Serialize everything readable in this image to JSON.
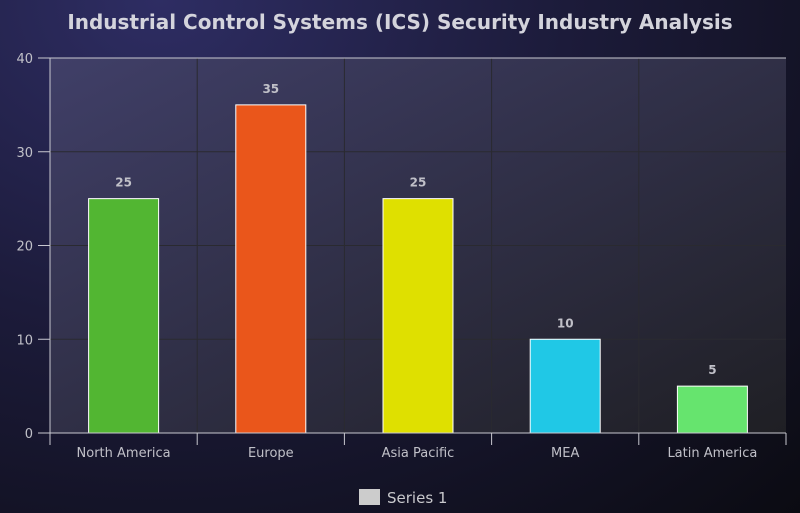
{
  "chart_data": {
    "type": "bar",
    "title": "Industrial Control Systems (ICS) Security Industry Analysis",
    "categories": [
      "North America",
      "Europe",
      "Asia Pacific",
      "MEA",
      "Latin America"
    ],
    "series": [
      {
        "name": "Series 1",
        "values": [
          25,
          35,
          25,
          10,
          5
        ]
      }
    ],
    "colors": [
      "#52b632",
      "#ea561b",
      "#dfe000",
      "#20c8e6",
      "#66e46e"
    ],
    "legend_color": "#cccccc",
    "ylim": [
      0,
      40
    ],
    "yticks": [
      0,
      10,
      20,
      30,
      40
    ],
    "grid": true,
    "legend": "bottom"
  }
}
